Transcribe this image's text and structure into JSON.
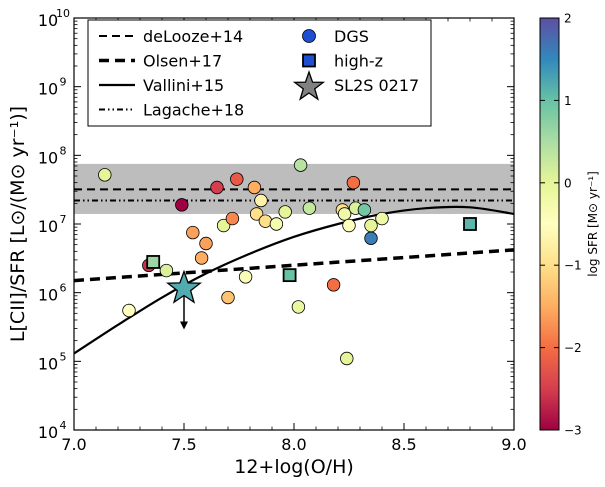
{
  "chart_data": {
    "type": "scatter",
    "x_axis": {
      "label": "12+log(O/H)",
      "range": [
        7.0,
        9.0
      ],
      "ticks": [
        7.0,
        7.5,
        8.0,
        8.5,
        9.0
      ],
      "tick_labels": [
        "7.0",
        "7.5",
        "8.0",
        "8.5",
        "9.0"
      ]
    },
    "y_axis": {
      "label": "L[CII]/SFR [L⊙/(M⊙ yr⁻¹)]",
      "scale": "log",
      "range": [
        10000.0,
        10000000000.0
      ],
      "tick_exponents": [
        4,
        5,
        6,
        7,
        8,
        9,
        10
      ],
      "tick_base": "10"
    },
    "colorbar": {
      "label": "log SFR [M⊙ yr⁻¹]",
      "range": [
        -3,
        2
      ],
      "ticks": [
        2,
        1,
        0,
        -1,
        -2,
        -3
      ],
      "tick_labels": [
        "2",
        "1",
        "0",
        "−1",
        "−2",
        "−3"
      ],
      "colormap": [
        "#9e0142",
        "#d53e4f",
        "#f46d43",
        "#fdae61",
        "#fee08b",
        "#ffffbf",
        "#e6f598",
        "#abdda4",
        "#66c2a5",
        "#3288bd",
        "#5e4fa2"
      ]
    },
    "shaded_band": {
      "y_min": 14000000.0,
      "y_max": 75000000.0,
      "color": "#bdbdbd"
    },
    "lines": [
      {
        "name": "deLooze+14",
        "style": "dashed",
        "points": [
          [
            7.0,
            32000000.0
          ],
          [
            9.0,
            32000000.0
          ]
        ]
      },
      {
        "name": "Olsen+17",
        "style": "thick-dashed",
        "points": [
          [
            7.0,
            1500000.0
          ],
          [
            9.0,
            4200000.0
          ]
        ]
      },
      {
        "name": "Vallini+15",
        "style": "solid",
        "points": [
          [
            7.0,
            130000.0
          ],
          [
            7.2,
            340000.0
          ],
          [
            7.4,
            850000.0
          ],
          [
            7.6,
            1900000.0
          ],
          [
            7.8,
            3700000.0
          ],
          [
            8.0,
            6500000.0
          ],
          [
            8.2,
            10000000.0
          ],
          [
            8.4,
            14000000.0
          ],
          [
            8.6,
            17000000.0
          ],
          [
            8.8,
            17500000.0
          ],
          [
            9.0,
            14000000.0
          ]
        ]
      },
      {
        "name": "Lagache+18",
        "style": "dashdot",
        "points": [
          [
            7.0,
            22000000.0
          ],
          [
            9.0,
            22000000.0
          ]
        ]
      }
    ],
    "legend": {
      "position": "top-left",
      "entries": [
        {
          "label": "deLooze+14",
          "marker": "dashed"
        },
        {
          "label": "Olsen+17",
          "marker": "thick-dashed"
        },
        {
          "label": "Vallini+15",
          "marker": "solid"
        },
        {
          "label": "Lagache+18",
          "marker": "dashdot"
        },
        {
          "label": "DGS",
          "marker": "circle",
          "color": "#1f4fd1"
        },
        {
          "label": "high-z",
          "marker": "square",
          "color": "#1f4fd1"
        },
        {
          "label": "SL2S 0217",
          "marker": "star",
          "color": "#808080"
        }
      ]
    },
    "series": [
      {
        "name": "DGS",
        "marker": "circle",
        "points": [
          [
            7.14,
            52000000.0,
            0.0
          ],
          [
            7.25,
            550000.0,
            -0.5
          ],
          [
            7.34,
            2500000.0,
            -2.6
          ],
          [
            7.42,
            2100000.0,
            0.1
          ],
          [
            7.49,
            19000000.0,
            -3.0
          ],
          [
            7.54,
            7500000.0,
            -1.6
          ],
          [
            7.58,
            3200000.0,
            -1.5
          ],
          [
            7.6,
            5200000.0,
            -1.6
          ],
          [
            7.65,
            34000000.0,
            -2.5
          ],
          [
            7.68,
            9500000.0,
            0.0
          ],
          [
            7.7,
            850000.0,
            -1.3
          ],
          [
            7.72,
            12000000.0,
            -1.8
          ],
          [
            7.74,
            45000000.0,
            -2.2
          ],
          [
            7.78,
            1700000.0,
            -0.4
          ],
          [
            7.82,
            34000000.0,
            -1.5
          ],
          [
            7.83,
            14000000.0,
            -1.0
          ],
          [
            7.85,
            22000000.0,
            -0.7
          ],
          [
            7.87,
            11000000.0,
            -1.0
          ],
          [
            7.92,
            10000000.0,
            -0.3
          ],
          [
            7.96,
            15000000.0,
            0.0
          ],
          [
            8.02,
            620000.0,
            -0.1
          ],
          [
            8.03,
            72000000.0,
            0.4
          ],
          [
            8.07,
            17000000.0,
            0.3
          ],
          [
            8.18,
            1300000.0,
            -2.0
          ],
          [
            8.22,
            16000000.0,
            -1.0
          ],
          [
            8.23,
            14000000.0,
            -0.2
          ],
          [
            8.24,
            110000.0,
            0.0
          ],
          [
            8.25,
            9500000.0,
            -0.5
          ],
          [
            8.27,
            40000000.0,
            -2.0
          ],
          [
            8.28,
            17000000.0,
            0.1
          ],
          [
            8.32,
            16000000.0,
            0.9
          ],
          [
            8.35,
            6200000.0,
            1.6
          ],
          [
            8.35,
            9500000.0,
            0.0
          ],
          [
            8.4,
            12000000.0,
            -0.2
          ]
        ]
      },
      {
        "name": "high-z",
        "marker": "square",
        "points": [
          [
            7.36,
            2800000.0,
            0.6
          ],
          [
            7.98,
            1800000.0,
            1.0
          ],
          [
            8.8,
            10000000.0,
            1.1
          ]
        ]
      },
      {
        "name": "SL2S 0217",
        "marker": "star",
        "upper_limit": true,
        "points": [
          [
            7.5,
            1150000.0,
            1.2
          ]
        ]
      }
    ]
  }
}
